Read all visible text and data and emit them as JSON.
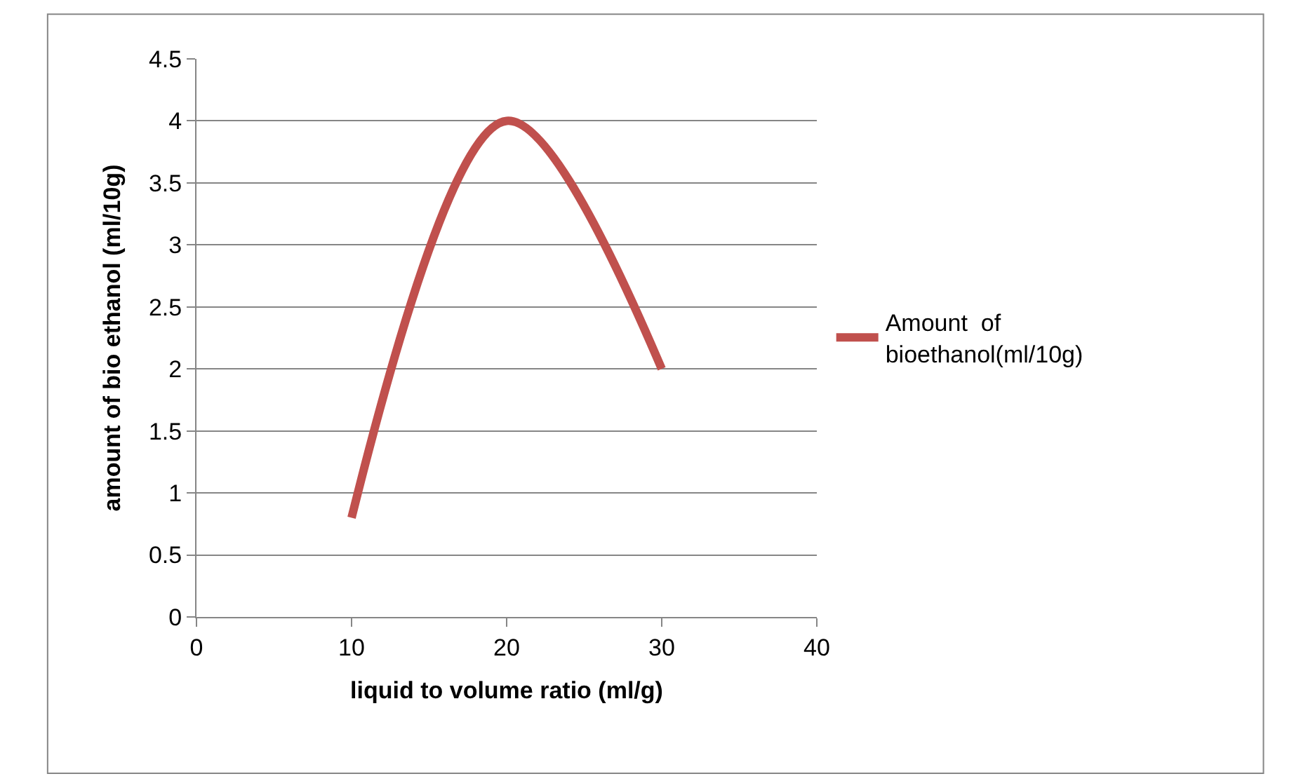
{
  "chart_data": {
    "type": "line",
    "xlabel": "liquid to volume ratio (ml/g)",
    "ylabel": "amount of bio ethanol (ml/10g)",
    "x": [
      10,
      20,
      30
    ],
    "series": [
      {
        "name": "Amount  of bioethanol(ml/10g)",
        "color": "#c0504d",
        "values": [
          0.8,
          4,
          2
        ]
      }
    ],
    "xlim": [
      0,
      40
    ],
    "xticks": [
      0,
      10,
      20,
      30,
      40
    ],
    "ylim": [
      0,
      4.5
    ],
    "yticks": [
      0,
      0.5,
      1,
      1.5,
      2,
      2.5,
      3,
      3.5,
      4,
      4.5
    ],
    "grid": "y",
    "legend": "right",
    "marker": "none",
    "line_style": "solid"
  }
}
